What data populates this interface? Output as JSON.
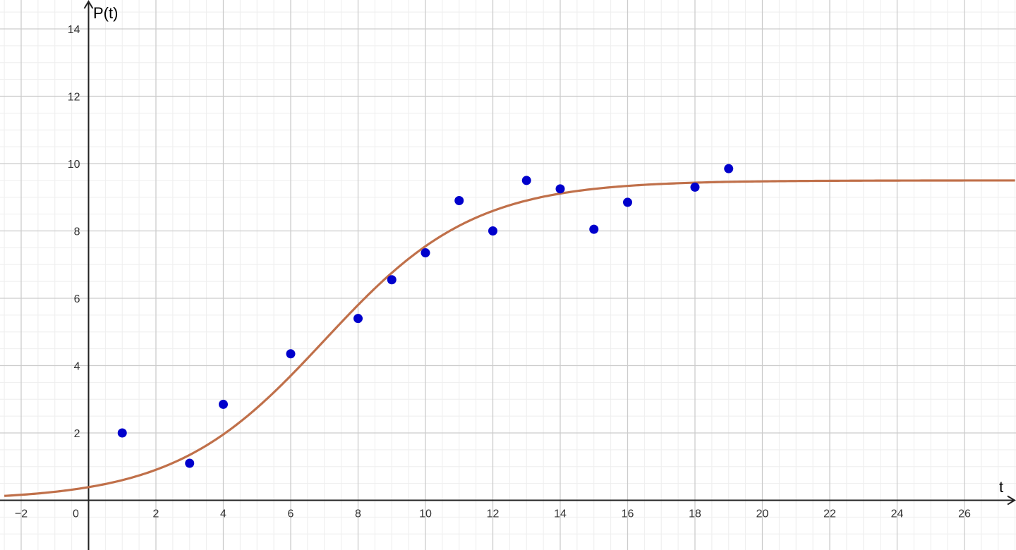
{
  "chart_data": {
    "type": "scatter",
    "xlabel": "t",
    "ylabel": "P(t)",
    "xlim": [
      -2.5,
      27.5
    ],
    "ylim": [
      -1.5,
      14.8
    ],
    "x_ticks": [
      {
        "value": -2,
        "label": "−2"
      },
      {
        "value": 0,
        "label": "0"
      },
      {
        "value": 2,
        "label": "2"
      },
      {
        "value": 4,
        "label": "4"
      },
      {
        "value": 6,
        "label": "6"
      },
      {
        "value": 8,
        "label": "8"
      },
      {
        "value": 10,
        "label": "10"
      },
      {
        "value": 12,
        "label": "12"
      },
      {
        "value": 14,
        "label": "14"
      },
      {
        "value": 16,
        "label": "16"
      },
      {
        "value": 18,
        "label": "18"
      },
      {
        "value": 20,
        "label": "20"
      },
      {
        "value": 22,
        "label": "22"
      },
      {
        "value": 24,
        "label": "24"
      },
      {
        "value": 26,
        "label": "26"
      }
    ],
    "y_ticks": [
      {
        "value": 2,
        "label": "2"
      },
      {
        "value": 4,
        "label": "4"
      },
      {
        "value": 6,
        "label": "6"
      },
      {
        "value": 8,
        "label": "8"
      },
      {
        "value": 10,
        "label": "10"
      },
      {
        "value": 12,
        "label": "12"
      },
      {
        "value": 14,
        "label": "14"
      }
    ],
    "grid": true,
    "minor_grid": true,
    "series": [
      {
        "kind": "scatter",
        "color": "#0000cc",
        "points": [
          {
            "x": 1,
            "y": 2.0
          },
          {
            "x": 3,
            "y": 1.1
          },
          {
            "x": 4,
            "y": 2.85
          },
          {
            "x": 6,
            "y": 4.35
          },
          {
            "x": 8,
            "y": 5.4
          },
          {
            "x": 9,
            "y": 6.55
          },
          {
            "x": 10,
            "y": 7.35
          },
          {
            "x": 11,
            "y": 8.9
          },
          {
            "x": 12,
            "y": 8.0
          },
          {
            "x": 13,
            "y": 9.5
          },
          {
            "x": 14,
            "y": 9.25
          },
          {
            "x": 15,
            "y": 8.05
          },
          {
            "x": 16,
            "y": 8.85
          },
          {
            "x": 18,
            "y": 9.3
          },
          {
            "x": 19,
            "y": 9.85
          }
        ]
      },
      {
        "kind": "curve",
        "color": "#c0704a",
        "model": "logistic",
        "params": {
          "L": 9.5,
          "k": 0.45,
          "t0": 7.0
        },
        "domain": [
          -2.5,
          27.5
        ]
      }
    ]
  }
}
